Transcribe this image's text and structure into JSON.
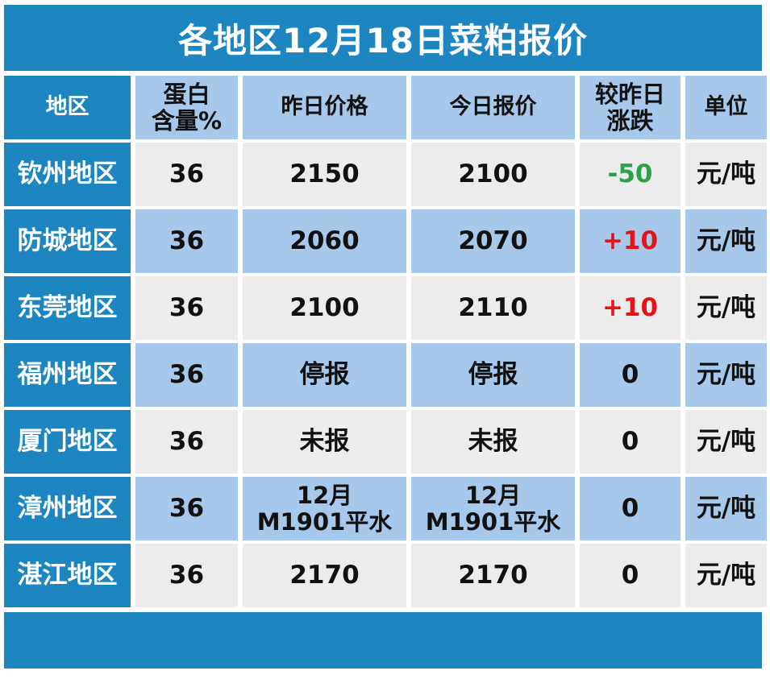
{
  "title": "各地区12月18日菜粕报价",
  "headers": {
    "region": "地区",
    "protein_line1": "蛋白",
    "protein_line2": "含量%",
    "yesterday": "昨日价格",
    "today": "今日报价",
    "change_line1": "较昨日",
    "change_line2": "涨跌",
    "unit": "单位"
  },
  "rows": [
    {
      "region": "钦州地区",
      "protein": "36",
      "yesterday": "2150",
      "today": "2100",
      "change": "-50",
      "unit": "元/吨"
    },
    {
      "region": "防城地区",
      "protein": "36",
      "yesterday": "2060",
      "today": "2070",
      "change": "+10",
      "unit": "元/吨"
    },
    {
      "region": "东莞地区",
      "protein": "36",
      "yesterday": "2100",
      "today": "2110",
      "change": "+10",
      "unit": "元/吨"
    },
    {
      "region": "福州地区",
      "protein": "36",
      "yesterday": "停报",
      "today": "停报",
      "change": "0",
      "unit": "元/吨"
    },
    {
      "region": "厦门地区",
      "protein": "36",
      "yesterday": "未报",
      "today": "未报",
      "change": "0",
      "unit": "元/吨"
    },
    {
      "region": "漳州地区",
      "protein": "36",
      "yesterday_line1": "12月",
      "yesterday_line2": "M1901平水",
      "today_line1": "12月",
      "today_line2": "M1901平水",
      "change": "0",
      "unit": "元/吨"
    },
    {
      "region": "湛江地区",
      "protein": "36",
      "yesterday": "2170",
      "today": "2170",
      "change": "0",
      "unit": "元/吨"
    }
  ],
  "colors": {
    "header_blue": "#1d86c0",
    "light_blue": "#a6c8ea",
    "light_gray": "#ececec",
    "negative": "#2aa14a",
    "positive": "#e4141a"
  }
}
